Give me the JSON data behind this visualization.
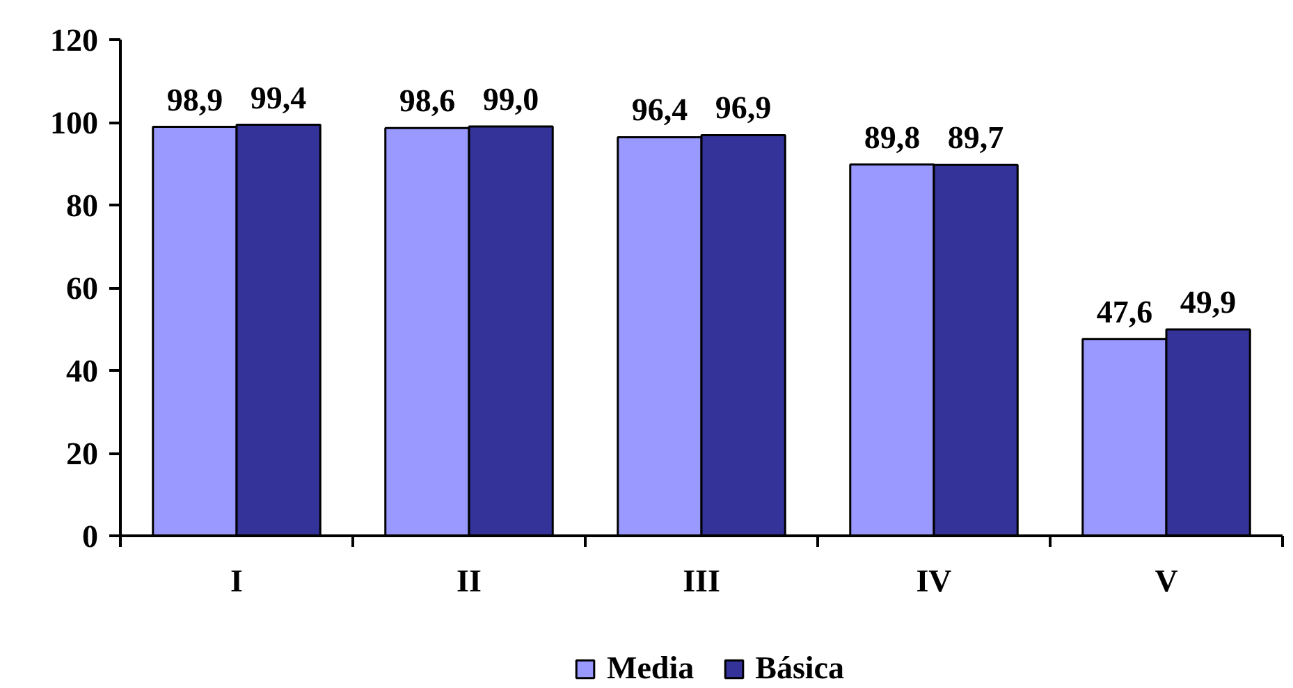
{
  "chart_data": {
    "type": "bar",
    "categories": [
      "I",
      "II",
      "III",
      "IV",
      "V"
    ],
    "series": [
      {
        "name": "Media",
        "color": "#9999ff",
        "values": [
          98.9,
          98.6,
          96.4,
          89.8,
          47.6
        ],
        "value_labels": [
          "98,9",
          "98,6",
          "96,4",
          "89,8",
          "47,6"
        ]
      },
      {
        "name": "Básica",
        "color": "#333399",
        "values": [
          99.4,
          99.0,
          96.9,
          89.7,
          49.9
        ],
        "value_labels": [
          "99,4",
          "99,0",
          "96,9",
          "89,7",
          "49,9"
        ]
      }
    ],
    "ylim": [
      0,
      120
    ],
    "yticks": [
      0,
      20,
      40,
      60,
      80,
      100,
      120
    ],
    "grid": false,
    "legend": "bottom"
  }
}
